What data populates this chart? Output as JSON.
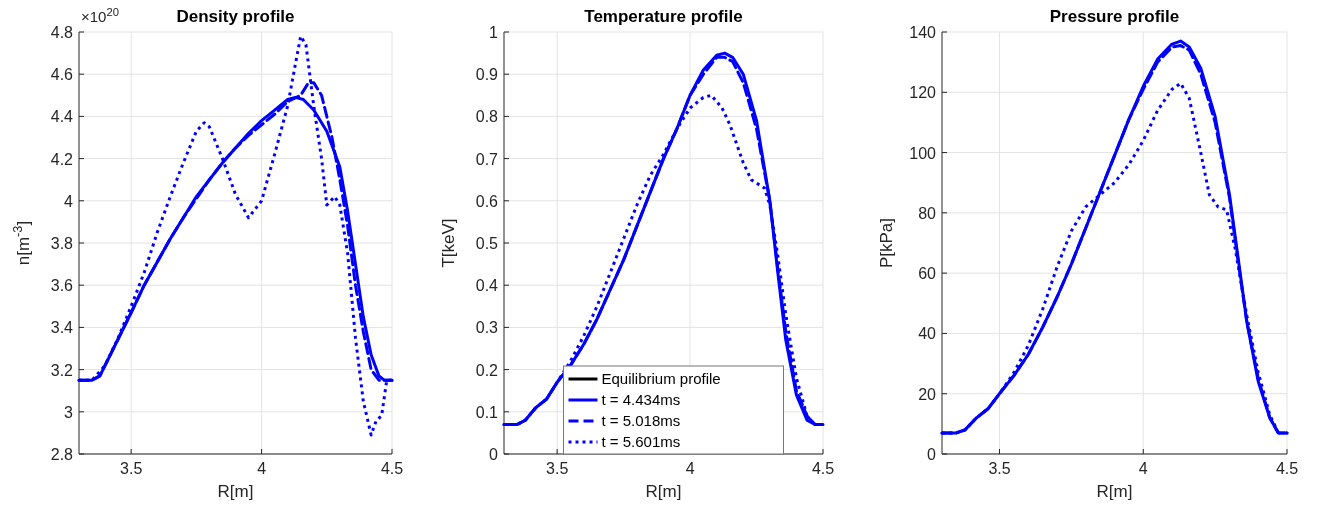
{
  "chart_data": [
    {
      "type": "line",
      "title": "Density profile",
      "xlabel": "R[m]",
      "ylabel": "n[m$^{-3}$]",
      "annotations": [
        "×10$^{20}$"
      ],
      "xlim": [
        3.3,
        4.5
      ],
      "xticks": [
        3.5,
        4,
        4.5
      ],
      "ylim": [
        2.8,
        4.8
      ],
      "yticks": [
        2.8,
        3,
        3.2,
        3.4,
        3.6,
        3.8,
        4,
        4.2,
        4.4,
        4.6,
        4.8
      ],
      "grid": true,
      "legend": false,
      "marker": "none",
      "series": [
        {
          "color": "#0000ff",
          "line_style": "solid",
          "x": [
            3.3,
            3.35,
            3.38,
            3.42,
            3.46,
            3.5,
            3.55,
            3.6,
            3.65,
            3.7,
            3.75,
            3.8,
            3.85,
            3.9,
            3.95,
            4.0,
            4.05,
            4.1,
            4.13,
            4.16,
            4.2,
            4.25,
            4.3,
            4.33,
            4.36,
            4.39,
            4.42,
            4.45,
            4.47,
            4.5
          ],
          "values": [
            3.15,
            3.15,
            3.17,
            3.27,
            3.37,
            3.47,
            3.6,
            3.71,
            3.82,
            3.92,
            4.02,
            4.1,
            4.18,
            4.25,
            4.32,
            4.38,
            4.43,
            4.48,
            4.49,
            4.48,
            4.43,
            4.33,
            4.16,
            3.95,
            3.7,
            3.45,
            3.27,
            3.17,
            3.15,
            3.15
          ]
        },
        {
          "color": "#0000ff",
          "line_style": "dashed",
          "x": [
            3.3,
            3.35,
            3.38,
            3.42,
            3.46,
            3.5,
            3.55,
            3.6,
            3.65,
            3.7,
            3.75,
            3.8,
            3.85,
            3.9,
            3.95,
            4.0,
            4.05,
            4.1,
            4.15,
            4.18,
            4.2,
            4.23,
            4.27,
            4.3,
            4.33,
            4.36,
            4.39,
            4.42,
            4.45,
            4.5
          ],
          "values": [
            3.15,
            3.15,
            3.17,
            3.27,
            3.37,
            3.47,
            3.6,
            3.71,
            3.82,
            3.92,
            4.01,
            4.1,
            4.18,
            4.25,
            4.31,
            4.36,
            4.41,
            4.47,
            4.5,
            4.56,
            4.56,
            4.5,
            4.3,
            4.1,
            3.88,
            3.6,
            3.38,
            3.2,
            3.15,
            3.15
          ]
        },
        {
          "color": "#0000ff",
          "line_style": "dotted",
          "x": [
            3.3,
            3.35,
            3.4,
            3.45,
            3.5,
            3.55,
            3.6,
            3.65,
            3.7,
            3.75,
            3.78,
            3.8,
            3.85,
            3.9,
            3.95,
            4.0,
            4.05,
            4.1,
            4.13,
            4.15,
            4.17,
            4.2,
            4.23,
            4.25,
            4.28,
            4.3,
            4.33,
            4.36,
            4.39,
            4.42,
            4.44,
            4.46,
            4.48,
            4.5
          ],
          "values": [
            3.15,
            3.15,
            3.22,
            3.35,
            3.5,
            3.66,
            3.85,
            4.02,
            4.18,
            4.33,
            4.37,
            4.35,
            4.2,
            4.03,
            3.92,
            4.0,
            4.22,
            4.45,
            4.65,
            4.78,
            4.74,
            4.45,
            4.2,
            3.98,
            4.02,
            3.98,
            3.75,
            3.35,
            3.05,
            2.89,
            2.96,
            2.98,
            3.15,
            3.15
          ]
        }
      ]
    },
    {
      "type": "line",
      "title": "Temperature profile",
      "xlabel": "R[m]",
      "ylabel": "T[keV]",
      "xlim": [
        3.3,
        4.5
      ],
      "xticks": [
        3.5,
        4,
        4.5
      ],
      "ylim": [
        0,
        1
      ],
      "yticks": [
        0,
        0.1,
        0.2,
        0.3,
        0.4,
        0.5,
        0.6,
        0.7,
        0.8,
        0.9,
        1
      ],
      "grid": true,
      "legend": "bottom",
      "marker": "none",
      "series": [
        {
          "name": "Equilibrium profile",
          "color": "#000000",
          "line_style": "solid"
        },
        {
          "name": "t = 4.434ms",
          "color": "#0000ff",
          "line_style": "solid",
          "x": [
            3.3,
            3.35,
            3.38,
            3.42,
            3.46,
            3.5,
            3.55,
            3.6,
            3.65,
            3.7,
            3.75,
            3.8,
            3.85,
            3.9,
            3.95,
            4.0,
            4.05,
            4.1,
            4.13,
            4.16,
            4.2,
            4.25,
            4.3,
            4.33,
            4.36,
            4.4,
            4.44,
            4.47,
            4.5
          ],
          "values": [
            0.07,
            0.07,
            0.08,
            0.11,
            0.13,
            0.17,
            0.21,
            0.26,
            0.32,
            0.39,
            0.46,
            0.54,
            0.62,
            0.7,
            0.77,
            0.85,
            0.91,
            0.945,
            0.95,
            0.94,
            0.9,
            0.79,
            0.6,
            0.43,
            0.27,
            0.14,
            0.08,
            0.07,
            0.07
          ]
        },
        {
          "name": "t = 5.018ms",
          "color": "#0000ff",
          "line_style": "dashed",
          "x": [
            3.3,
            3.35,
            3.38,
            3.42,
            3.46,
            3.5,
            3.55,
            3.6,
            3.65,
            3.7,
            3.75,
            3.8,
            3.85,
            3.9,
            3.95,
            4.0,
            4.05,
            4.1,
            4.13,
            4.16,
            4.2,
            4.25,
            4.3,
            4.33,
            4.36,
            4.4,
            4.44,
            4.47,
            4.5
          ],
          "values": [
            0.07,
            0.07,
            0.08,
            0.11,
            0.13,
            0.17,
            0.21,
            0.26,
            0.32,
            0.39,
            0.46,
            0.54,
            0.62,
            0.7,
            0.77,
            0.85,
            0.9,
            0.94,
            0.94,
            0.93,
            0.88,
            0.77,
            0.6,
            0.44,
            0.29,
            0.15,
            0.09,
            0.07,
            0.07
          ]
        },
        {
          "name": "t = 5.601ms",
          "color": "#0000ff",
          "line_style": "dotted",
          "x": [
            3.3,
            3.35,
            3.38,
            3.42,
            3.46,
            3.5,
            3.55,
            3.6,
            3.65,
            3.7,
            3.75,
            3.8,
            3.85,
            3.9,
            3.95,
            4.0,
            4.05,
            4.08,
            4.12,
            4.15,
            4.2,
            4.23,
            4.28,
            4.3,
            4.33,
            4.36,
            4.4,
            4.44,
            4.47,
            4.5
          ],
          "values": [
            0.07,
            0.07,
            0.08,
            0.11,
            0.13,
            0.17,
            0.22,
            0.28,
            0.35,
            0.43,
            0.51,
            0.59,
            0.66,
            0.71,
            0.77,
            0.82,
            0.845,
            0.85,
            0.82,
            0.78,
            0.69,
            0.65,
            0.63,
            0.59,
            0.47,
            0.33,
            0.18,
            0.09,
            0.07,
            0.07
          ]
        }
      ]
    },
    {
      "type": "line",
      "title": "Pressure profile",
      "xlabel": "R[m]",
      "ylabel": "P[kPa]",
      "xlim": [
        3.3,
        4.5
      ],
      "xticks": [
        3.5,
        4,
        4.5
      ],
      "ylim": [
        0,
        140
      ],
      "yticks": [
        0,
        20,
        40,
        60,
        80,
        100,
        120,
        140
      ],
      "grid": true,
      "legend": false,
      "marker": "none",
      "series": [
        {
          "color": "#0000ff",
          "line_style": "solid",
          "x": [
            3.3,
            3.35,
            3.38,
            3.42,
            3.46,
            3.5,
            3.55,
            3.6,
            3.65,
            3.7,
            3.75,
            3.8,
            3.85,
            3.9,
            3.95,
            4.0,
            4.05,
            4.1,
            4.13,
            4.16,
            4.2,
            4.25,
            4.3,
            4.33,
            4.36,
            4.4,
            4.44,
            4.47,
            4.5
          ],
          "values": [
            7,
            7,
            8,
            12,
            15,
            20,
            26,
            33,
            42,
            52,
            63,
            75,
            87,
            99,
            111,
            122,
            131,
            136,
            137,
            135,
            128,
            112,
            86,
            65,
            44,
            24,
            12,
            7,
            7
          ]
        },
        {
          "color": "#0000ff",
          "line_style": "dashed",
          "x": [
            3.3,
            3.35,
            3.38,
            3.42,
            3.46,
            3.5,
            3.55,
            3.6,
            3.65,
            3.7,
            3.75,
            3.8,
            3.85,
            3.9,
            3.95,
            4.0,
            4.05,
            4.1,
            4.13,
            4.16,
            4.2,
            4.25,
            4.3,
            4.33,
            4.36,
            4.4,
            4.44,
            4.47,
            4.5
          ],
          "values": [
            7,
            7,
            8,
            12,
            15,
            20,
            26,
            33,
            42,
            52,
            63,
            75,
            87,
            99,
            111,
            121,
            130,
            135,
            135.5,
            134,
            126,
            110,
            85,
            64,
            44,
            25,
            12,
            7,
            7
          ]
        },
        {
          "color": "#0000ff",
          "line_style": "dotted",
          "x": [
            3.3,
            3.35,
            3.38,
            3.42,
            3.46,
            3.5,
            3.55,
            3.6,
            3.65,
            3.7,
            3.75,
            3.8,
            3.85,
            3.9,
            3.95,
            4.0,
            4.05,
            4.1,
            4.13,
            4.16,
            4.2,
            4.23,
            4.26,
            4.29,
            4.32,
            4.36,
            4.4,
            4.44,
            4.47,
            4.5
          ],
          "values": [
            7,
            7,
            8,
            12,
            15,
            20,
            27,
            36,
            48,
            62,
            74,
            82,
            86,
            90,
            96,
            104,
            114,
            121,
            123,
            118,
            100,
            86,
            82,
            81,
            68,
            46,
            27,
            13,
            7,
            7
          ]
        }
      ]
    }
  ]
}
